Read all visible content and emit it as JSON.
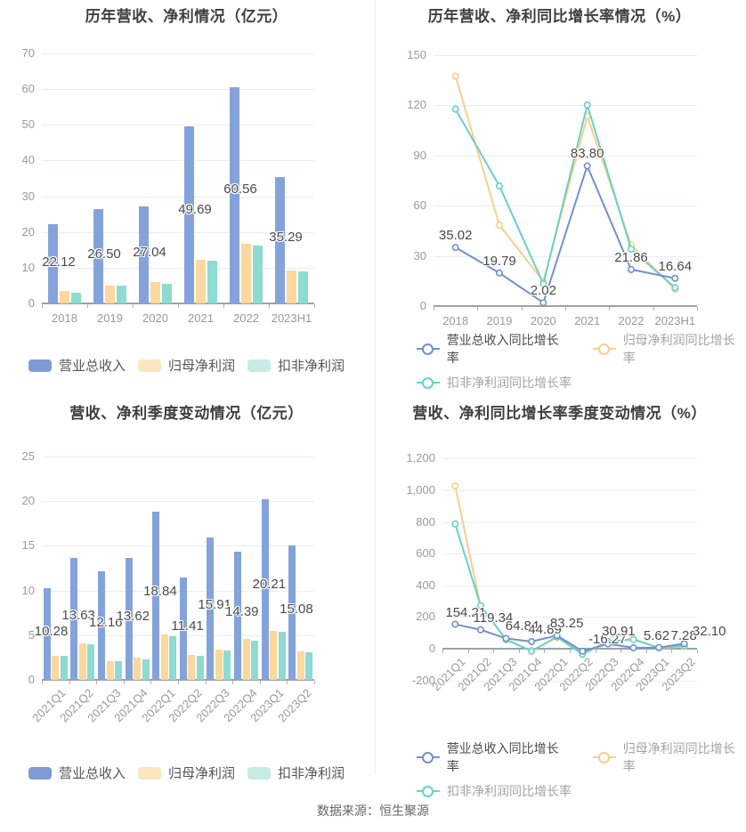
{
  "page": {
    "source": "数据来源：恒生聚源"
  },
  "colors": {
    "revenue": {
      "bar": "#85A3DB",
      "line": "#7191CE",
      "legend": "#7E9BD4"
    },
    "net": {
      "bar": "#FBD89E",
      "line": "#F9CE8C",
      "legend": "#FBE5C0"
    },
    "nongaap": {
      "bar": "#8EDBD2",
      "line": "#68D1C6",
      "legend": "#C7EBE5"
    }
  },
  "chart_data": [
    {
      "id": "annual-amount",
      "type": "bar",
      "title": "历年营收、净利情况（亿元）",
      "ylabel": "",
      "xlabel": "",
      "ylim": [
        0,
        70
      ],
      "yticks": [
        "0",
        "10",
        "20",
        "30",
        "40",
        "50",
        "60",
        "70"
      ],
      "categories": [
        "2018",
        "2019",
        "2020",
        "2021",
        "2022",
        "2023H1"
      ],
      "series": [
        {
          "name": "营业总收入",
          "key": "revenue",
          "values": [
            22.12,
            26.5,
            27.04,
            49.69,
            60.56,
            35.29
          ],
          "labels": [
            "22.12",
            "26.50",
            "27.04",
            "49.69",
            "60.56",
            "35.29"
          ]
        },
        {
          "name": "归母净利润",
          "key": "net",
          "values": [
            3.4,
            5.0,
            5.9,
            12.3,
            16.6,
            9.2
          ]
        },
        {
          "name": "扣非净利润",
          "key": "nongaap",
          "values": [
            3.0,
            5.1,
            5.6,
            12.0,
            16.1,
            9.0
          ]
        }
      ]
    },
    {
      "id": "annual-growth",
      "type": "line",
      "title": "历年营收、净利同比增长率情况（%）",
      "ylabel": "",
      "xlabel": "",
      "ylim": [
        0,
        150
      ],
      "yticks": [
        "0",
        "30",
        "60",
        "90",
        "120",
        "150"
      ],
      "categories": [
        "2018",
        "2019",
        "2020",
        "2021",
        "2022",
        "2023H1"
      ],
      "series": [
        {
          "name": "营业总收入同比增长率",
          "key": "revenue",
          "values": [
            35.02,
            19.79,
            2.02,
            83.8,
            21.86,
            16.64
          ],
          "labels": [
            "35.02",
            "19.79",
            "2.02",
            "83.80",
            "21.86",
            "16.64"
          ]
        },
        {
          "name": "归母净利润同比增长率",
          "key": "net",
          "values": [
            137.5,
            48.4,
            14.8,
            113.6,
            36.5,
            10.1
          ]
        },
        {
          "name": "扣非净利润同比增长率",
          "key": "nongaap",
          "values": [
            117.7,
            71.8,
            13.2,
            120.2,
            34.0,
            11.0
          ]
        }
      ]
    },
    {
      "id": "quarter-amount",
      "type": "bar",
      "title": "营收、净利季度变动情况（亿元）",
      "ylabel": "",
      "xlabel": "",
      "ylim": [
        0,
        25
      ],
      "yticks": [
        "0",
        "5",
        "10",
        "15",
        "20",
        "25"
      ],
      "categories": [
        "2021Q1",
        "2021Q2",
        "2021Q3",
        "2021Q4",
        "2022Q1",
        "2022Q2",
        "2022Q3",
        "2022Q4",
        "2023Q1",
        "2023Q2"
      ],
      "series": [
        {
          "name": "营业总收入",
          "key": "revenue",
          "values": [
            10.28,
            13.63,
            12.16,
            13.62,
            18.84,
            11.41,
            15.91,
            14.39,
            20.21,
            15.08
          ],
          "labels": [
            "10.28",
            "13.63",
            "12.16",
            "13.62",
            "18.84",
            "11.41",
            "15.91",
            "14.39",
            "20.21",
            "15.08"
          ]
        },
        {
          "name": "归母净利润",
          "key": "net",
          "values": [
            2.7,
            4.05,
            2.1,
            2.5,
            5.05,
            2.8,
            3.4,
            4.6,
            5.45,
            3.2
          ]
        },
        {
          "name": "扣非净利润",
          "key": "nongaap",
          "values": [
            2.65,
            4.0,
            2.1,
            2.3,
            4.85,
            2.65,
            3.25,
            4.4,
            5.4,
            3.1
          ]
        }
      ]
    },
    {
      "id": "quarter-growth",
      "type": "line",
      "title": "营收、净利同比增长率季度变动情况（%）",
      "ylabel": "",
      "xlabel": "",
      "ylim": [
        -200,
        1200
      ],
      "yticks": [
        "-200",
        "0",
        "200",
        "400",
        "600",
        "800",
        "1,000",
        "1,200"
      ],
      "categories": [
        "2021Q1",
        "2021Q2",
        "2021Q3",
        "2021Q4",
        "2022Q1",
        "2022Q2",
        "2022Q3",
        "2022Q4",
        "2023Q1",
        "2023Q2"
      ],
      "series": [
        {
          "name": "营业总收入同比增长率",
          "key": "revenue",
          "values": [
            154.21,
            119.34,
            64.84,
            44.89,
            83.25,
            -16.27,
            30.91,
            5.62,
            7.28,
            32.1
          ],
          "labels": [
            "154.21",
            "119.34",
            "64.84",
            "44.89",
            "83.25",
            "-16.27",
            "30.91",
            "5.62",
            "7.28",
            "32.10"
          ]
        },
        {
          "name": "归母净利润同比增长率",
          "key": "net",
          "values": [
            1028,
            268,
            57,
            -12,
            70,
            -32,
            42,
            62,
            5,
            13
          ]
        },
        {
          "name": "扣非净利润同比增长率",
          "key": "nongaap",
          "values": [
            788,
            272,
            57,
            -15,
            75,
            -35,
            46,
            58,
            6,
            19
          ]
        }
      ]
    }
  ]
}
